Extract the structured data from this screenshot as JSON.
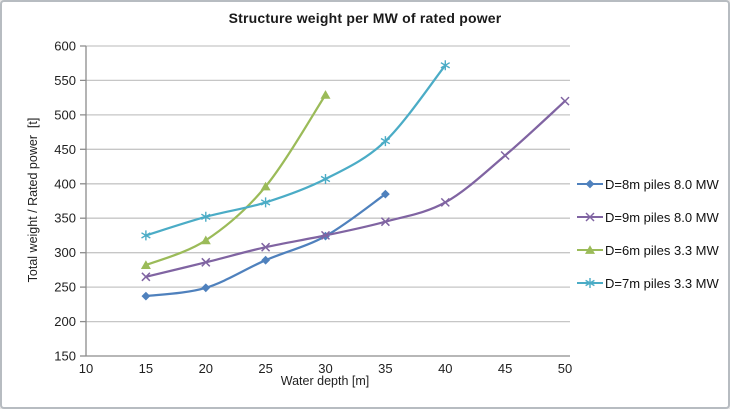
{
  "chart_data": {
    "type": "line",
    "title": "Structure weight per MW of rated power",
    "xlabel": "Water depth [m]",
    "ylabel": "Total weight / Rated power  [t]",
    "xlim": [
      10,
      50
    ],
    "ylim": [
      150,
      600
    ],
    "xticks": [
      10,
      15,
      20,
      25,
      30,
      35,
      40,
      45,
      50
    ],
    "yticks": [
      150,
      200,
      250,
      300,
      350,
      400,
      450,
      500,
      550,
      600
    ],
    "grid": "horizontal",
    "line_style": "smooth",
    "legend_position": "right",
    "series": [
      {
        "name": "D=8m piles 8.0 MW",
        "color": "#4f81bd",
        "marker": "diamond",
        "x": [
          15,
          20,
          25,
          30,
          35
        ],
        "y": [
          237,
          249,
          289,
          324,
          385
        ]
      },
      {
        "name": "D=9m piles 8.0 MW",
        "color": "#8064a2",
        "marker": "x",
        "x": [
          15,
          20,
          25,
          30,
          35,
          40,
          45,
          50
        ],
        "y": [
          265,
          286,
          308,
          325,
          345,
          373,
          441,
          520
        ]
      },
      {
        "name": "D=6m piles 3.3 MW",
        "color": "#9bbb59",
        "marker": "triangle",
        "x": [
          15,
          20,
          25,
          30
        ],
        "y": [
          282,
          318,
          396,
          529
        ]
      },
      {
        "name": "D=7m piles 3.3 MW",
        "color": "#4bacc6",
        "marker": "asterisk",
        "x": [
          15,
          20,
          25,
          30,
          35,
          40
        ],
        "y": [
          325,
          352,
          373,
          407,
          462,
          572
        ]
      }
    ],
    "colors": {
      "gridline": "#c6c6c6",
      "axis": "#8c8c8c",
      "tick_text": "#1f1f1f",
      "frame_border": "#b7bcc1",
      "background": "#ffffff"
    }
  }
}
